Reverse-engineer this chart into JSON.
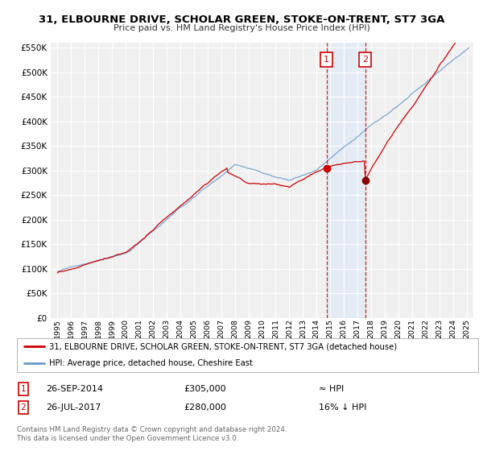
{
  "title": "31, ELBOURNE DRIVE, SCHOLAR GREEN, STOKE-ON-TRENT, ST7 3GA",
  "subtitle": "Price paid vs. HM Land Registry's House Price Index (HPI)",
  "background_color": "#ffffff",
  "plot_bg_color": "#f0f0f0",
  "grid_color": "#ffffff",
  "hpi_color": "#6699cc",
  "house_color": "#cc0000",
  "sale1_year": 2014.73,
  "sale1_price": 305000,
  "sale2_year": 2017.56,
  "sale2_price": 280000,
  "legend_house": "31, ELBOURNE DRIVE, SCHOLAR GREEN, STOKE-ON-TRENT, ST7 3GA (detached house)",
  "legend_hpi": "HPI: Average price, detached house, Cheshire East",
  "copyright": "Contains HM Land Registry data © Crown copyright and database right 2024.\nThis data is licensed under the Open Government Licence v3.0.",
  "ylim": [
    0,
    560000
  ],
  "xlim_start": 1994.5,
  "xlim_end": 2025.5,
  "yticks": [
    0,
    50000,
    100000,
    150000,
    200000,
    250000,
    300000,
    350000,
    400000,
    450000,
    500000,
    550000
  ],
  "ytick_labels": [
    "£0",
    "£50K",
    "£100K",
    "£150K",
    "£200K",
    "£250K",
    "£300K",
    "£350K",
    "£400K",
    "£450K",
    "£500K",
    "£550K"
  ],
  "span_color": "#dce8f8",
  "span_alpha": 0.6
}
